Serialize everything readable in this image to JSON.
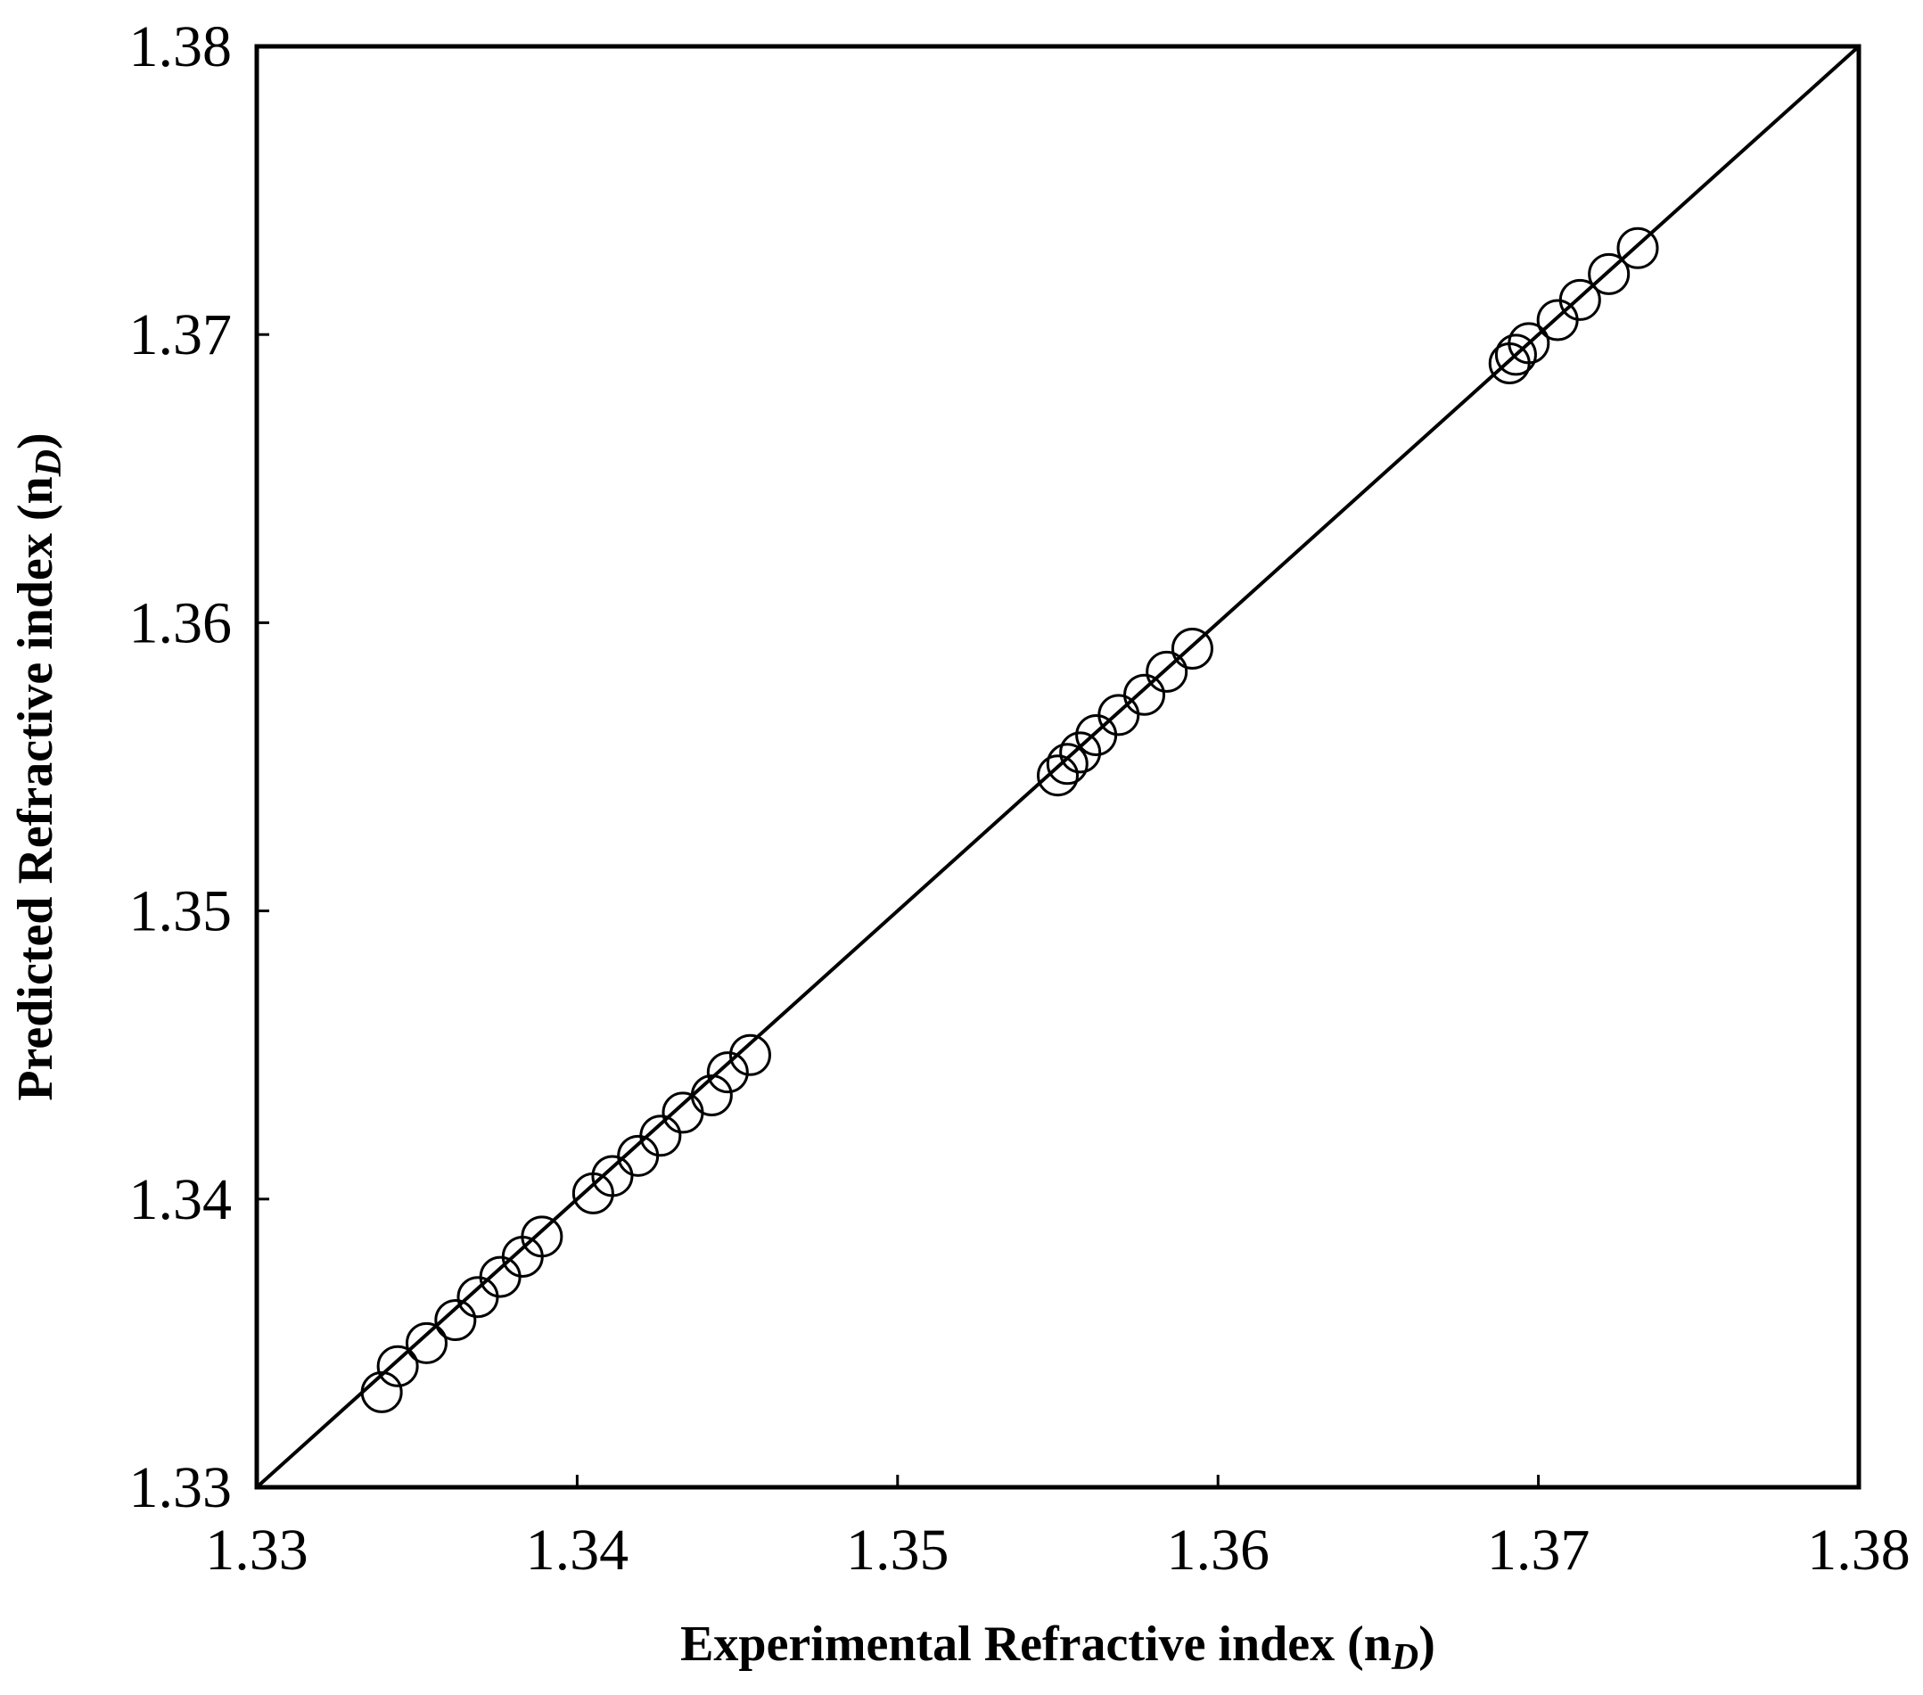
{
  "chart_data": {
    "type": "scatter",
    "xlabel": "Experimental  Refractive index (n",
    "xlabel_sub": "D",
    "xlabel_close": ")",
    "ylabel": "Predicted Refractive index (n",
    "ylabel_sub": "D",
    "ylabel_close": ")",
    "xlim": [
      1.33,
      1.38
    ],
    "ylim": [
      1.33,
      1.38
    ],
    "xticks": [
      "1.33",
      "1.34",
      "1.35",
      "1.36",
      "1.37",
      "1.38"
    ],
    "yticks": [
      "1.33",
      "1.34",
      "1.35",
      "1.36",
      "1.37",
      "1.38"
    ],
    "grid": false,
    "reference_line": {
      "from": [
        1.33,
        1.33
      ],
      "to": [
        1.38,
        1.38
      ]
    },
    "marker": "open-circle",
    "color": "#000000",
    "series": [
      {
        "x": [
          1.3339,
          1.3344,
          1.3353,
          1.3362,
          1.3369,
          1.3376,
          1.3383,
          1.3389,
          1.3405,
          1.3411,
          1.3419,
          1.3426,
          1.3433,
          1.3442,
          1.3447,
          1.3454,
          1.355,
          1.3553,
          1.3557,
          1.3562,
          1.3569,
          1.3577,
          1.3584,
          1.3592,
          1.3691,
          1.3693,
          1.3697,
          1.3706,
          1.3713,
          1.3722,
          1.3731
        ],
        "y": [
          1.3333,
          1.3342,
          1.335,
          1.3358,
          1.3366,
          1.3373,
          1.338,
          1.3387,
          1.3402,
          1.3408,
          1.3415,
          1.3422,
          1.343,
          1.3436,
          1.3444,
          1.345,
          1.3547,
          1.3551,
          1.3555,
          1.3561,
          1.3568,
          1.3575,
          1.3583,
          1.3591,
          1.369,
          1.3693,
          1.3697,
          1.3705,
          1.3712,
          1.3721,
          1.373
        ]
      }
    ]
  }
}
